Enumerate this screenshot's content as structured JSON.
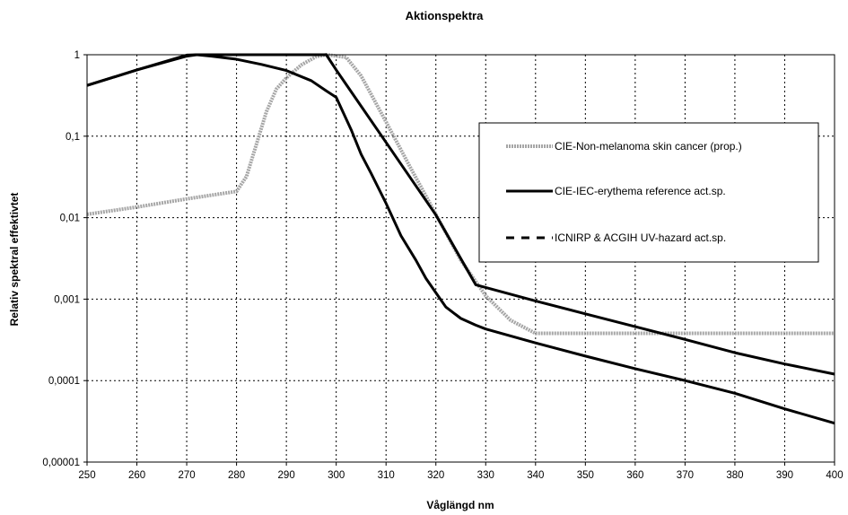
{
  "chart_data": {
    "type": "line",
    "title": "Aktionspektra",
    "xlabel": "Våglängd nm",
    "ylabel": "Relativ spektral effektivtet",
    "x_scale": "linear",
    "y_scale": "log",
    "xlim": [
      250,
      400
    ],
    "ylim": [
      1e-05,
      1
    ],
    "grid": true,
    "x_ticks": [
      "250",
      "260",
      "270",
      "280",
      "290",
      "300",
      "310",
      "320",
      "330",
      "340",
      "350",
      "360",
      "370",
      "380",
      "390",
      "400"
    ],
    "y_ticks": [
      "0,00001",
      "0,0001",
      "0,001",
      "0,01",
      "0,1",
      "1"
    ],
    "legend_position": "right-center",
    "series": [
      {
        "name": "CIE-Non-melanoma skin cancer (prop.)",
        "color": "#a6a6a6",
        "style": "solid-thick",
        "points": [
          [
            250,
            0.011
          ],
          [
            260,
            0.0135
          ],
          [
            270,
            0.017
          ],
          [
            280,
            0.021
          ],
          [
            282,
            0.032
          ],
          [
            284,
            0.08
          ],
          [
            286,
            0.2
          ],
          [
            288,
            0.38
          ],
          [
            290,
            0.52
          ],
          [
            293,
            0.75
          ],
          [
            296,
            0.95
          ],
          [
            298,
            1.0
          ],
          [
            302,
            0.93
          ],
          [
            305,
            0.55
          ],
          [
            310,
            0.15
          ],
          [
            315,
            0.04
          ],
          [
            320,
            0.011
          ],
          [
            325,
            0.003
          ],
          [
            330,
            0.0011
          ],
          [
            335,
            0.00055
          ],
          [
            340,
            0.00038
          ],
          [
            350,
            0.00038
          ],
          [
            360,
            0.00038
          ],
          [
            370,
            0.00038
          ],
          [
            380,
            0.00038
          ],
          [
            390,
            0.00038
          ],
          [
            400,
            0.00038
          ]
        ]
      },
      {
        "name": "CIE-IEC-erythema reference act.sp.",
        "color": "#000000",
        "style": "solid",
        "points": [
          [
            250,
            0.42
          ],
          [
            260,
            0.65
          ],
          [
            270,
            0.99
          ],
          [
            272,
            1.0
          ],
          [
            280,
            1.0
          ],
          [
            290,
            1.0
          ],
          [
            298,
            1.0
          ],
          [
            300,
            0.65
          ],
          [
            310,
            0.084
          ],
          [
            320,
            0.0108
          ],
          [
            328,
            0.0015
          ],
          [
            340,
            0.00095
          ],
          [
            350,
            0.00066
          ],
          [
            360,
            0.00046
          ],
          [
            370,
            0.00032
          ],
          [
            380,
            0.00022
          ],
          [
            390,
            0.00016
          ],
          [
            400,
            0.00012
          ]
        ]
      },
      {
        "name": "ICNIRP & ACGIH UV-hazard act.sp.",
        "color": "#000000",
        "style": "dashed",
        "points": [
          [
            250,
            0.42
          ],
          [
            260,
            0.65
          ],
          [
            270,
            0.96
          ],
          [
            272,
            1.0
          ],
          [
            275,
            0.96
          ],
          [
            280,
            0.88
          ],
          [
            285,
            0.76
          ],
          [
            290,
            0.64
          ],
          [
            295,
            0.48
          ],
          [
            298,
            0.36
          ],
          [
            300,
            0.3
          ],
          [
            303,
            0.12
          ],
          [
            305,
            0.06
          ],
          [
            307,
            0.035
          ],
          [
            310,
            0.015
          ],
          [
            313,
            0.006
          ],
          [
            316,
            0.003
          ],
          [
            318,
            0.0018
          ],
          [
            320,
            0.0012
          ],
          [
            322,
            0.0008
          ],
          [
            325,
            0.00058
          ],
          [
            328,
            0.00048
          ],
          [
            330,
            0.00043
          ],
          [
            340,
            0.00029
          ],
          [
            350,
            0.0002
          ],
          [
            360,
            0.00014
          ],
          [
            370,
            0.0001
          ],
          [
            380,
            7e-05
          ],
          [
            390,
            4.5e-05
          ],
          [
            400,
            3e-05
          ]
        ]
      }
    ]
  }
}
